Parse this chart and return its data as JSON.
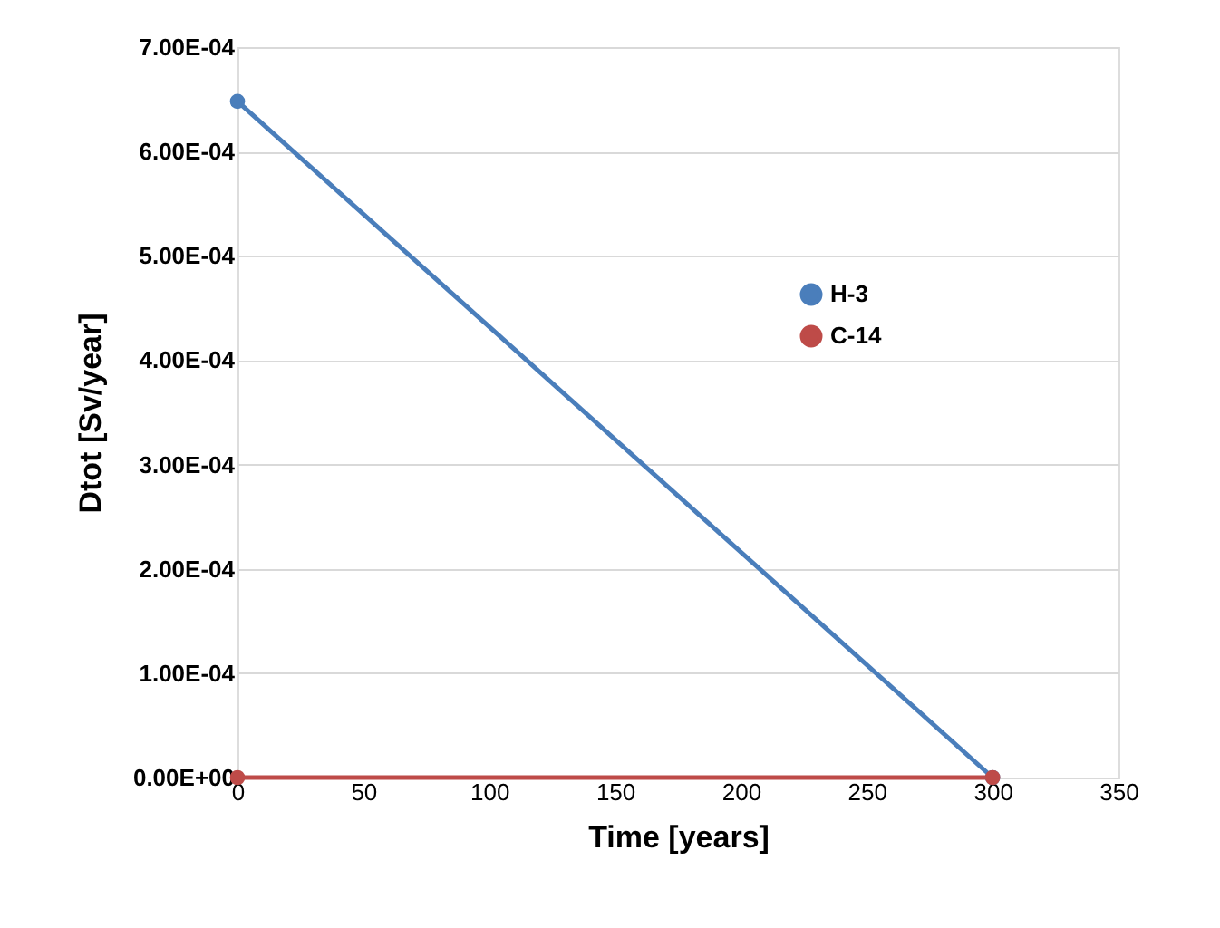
{
  "chart_data": {
    "type": "line",
    "xlabel": "Time [years]",
    "ylabel": "Dtot [Sv/year]",
    "x": [
      0,
      300
    ],
    "series": [
      {
        "name": "H-3",
        "color": "#4a7ebb",
        "values": [
          0.000648,
          0
        ]
      },
      {
        "name": "C-14",
        "color": "#be4b48",
        "values": [
          0,
          0
        ]
      }
    ],
    "xlim": [
      0,
      350
    ],
    "xticks": [
      0,
      50,
      100,
      150,
      200,
      250,
      300,
      350
    ],
    "ylim": [
      0,
      0.0007
    ],
    "yticks": [
      {
        "value": 0,
        "label": "0.00E+00"
      },
      {
        "value": 0.0001,
        "label": "1.00E-04"
      },
      {
        "value": 0.0002,
        "label": "2.00E-04"
      },
      {
        "value": 0.0003,
        "label": "3.00E-04"
      },
      {
        "value": 0.0004,
        "label": "4.00E-04"
      },
      {
        "value": 0.0005,
        "label": "5.00E-04"
      },
      {
        "value": 0.0006,
        "label": "6.00E-04"
      },
      {
        "value": 0.0007,
        "label": "7.00E-04"
      }
    ],
    "grid": "y",
    "legend": "top right",
    "marker": "circle",
    "line_style": "solid"
  }
}
